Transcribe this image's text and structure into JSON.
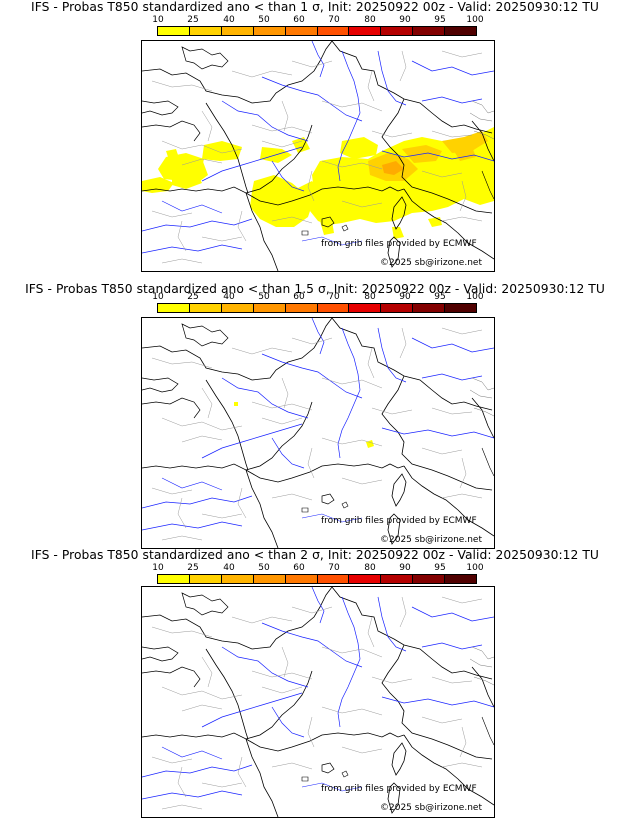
{
  "colorbar": {
    "labels": [
      "10",
      "25",
      "40",
      "50",
      "60",
      "70",
      "80",
      "90",
      "95",
      "100"
    ],
    "colors": [
      "#ffff00",
      "#ffd200",
      "#ffb400",
      "#ff9600",
      "#ff7800",
      "#ff5000",
      "#e60000",
      "#b40000",
      "#820000",
      "#500000"
    ]
  },
  "credits": {
    "source": "from grib files provided by ECMWF",
    "copyright": "©2025 sb@irizone.net"
  },
  "panels": [
    {
      "title": "IFS - Probas T850  standardized ano < than 1 σ, Init: 20250922 00z - Valid: 20250930:12 TU",
      "sigma": 1
    },
    {
      "title": "IFS - Probas T850  standardized ano < than 1.5 σ, Init: 20250922 00z - Valid: 20250930:12 TU",
      "sigma": 1.5
    },
    {
      "title": "IFS - Probas T850  standardized ano < than 2 σ, Init: 20250922 00z - Valid: 20250930:12 TU",
      "sigma": 2
    }
  ],
  "fill_colors": {
    "light": "#ffff00",
    "medium": "#ffd200",
    "strong": "#ff9600"
  }
}
